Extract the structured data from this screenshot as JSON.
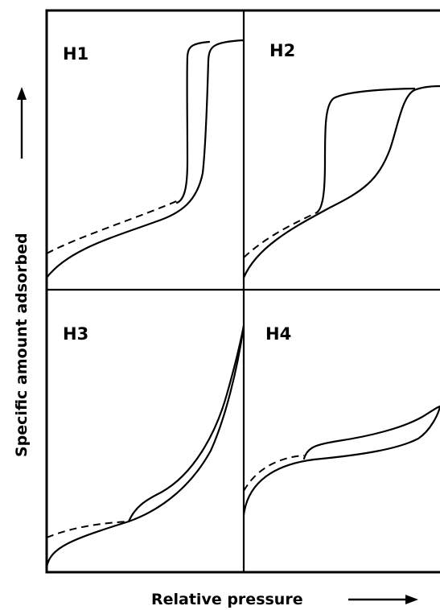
{
  "figure": {
    "panels": [
      {
        "id": "H1",
        "label": "H1"
      },
      {
        "id": "H2",
        "label": "H2"
      },
      {
        "id": "H3",
        "label": "H3"
      },
      {
        "id": "H4",
        "label": "H4"
      }
    ],
    "y_axis_label": "Specific amount adsorbed",
    "x_axis_label": "Relative pressure"
  }
}
